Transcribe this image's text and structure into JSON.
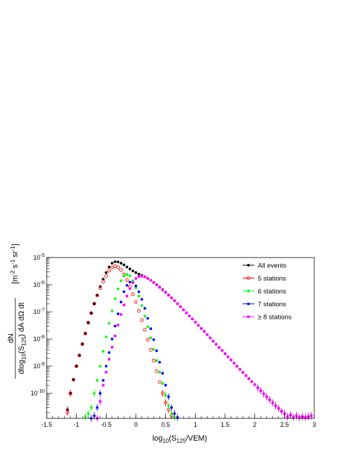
{
  "chart_data": {
    "type": "scatter",
    "title": "",
    "xlabel": {
      "pre": "log",
      "sub1": "10",
      "mid": "(S",
      "sub2": "125",
      "post": "/VEM)"
    },
    "ylabel": {
      "numerator": "dN",
      "denominator": {
        "pre": "dlog",
        "sub1": "10",
        "mid": "(S",
        "sub2": "125",
        "post": ") dA dΩ dt"
      },
      "units": {
        "open": "[m",
        "sup1": "-2",
        "s": " s",
        "sup2": "-1",
        "sr": " sr",
        "sup3": "-1",
        "close": "]"
      }
    },
    "x_scale": "linear",
    "y_scale": "log",
    "xlim": [
      -1.5,
      3.0
    ],
    "ylim": [
      1.2e-11,
      1e-05
    ],
    "x_ticks": [
      {
        "value": -1.5,
        "label": "-1.5"
      },
      {
        "value": -1,
        "label": "-1"
      },
      {
        "value": -0.5,
        "label": "-0.5"
      },
      {
        "value": 0,
        "label": "0"
      },
      {
        "value": 0.5,
        "label": "0.5"
      },
      {
        "value": 1,
        "label": "1"
      },
      {
        "value": 1.5,
        "label": "1.5"
      },
      {
        "value": 2,
        "label": "2"
      },
      {
        "value": 2.5,
        "label": "2.5"
      },
      {
        "value": 3,
        "label": "3"
      }
    ],
    "y_ticks": [
      {
        "value": 1e-10,
        "base": "10",
        "exp": "-10"
      },
      {
        "value": 1e-09,
        "base": "10",
        "exp": "-9"
      },
      {
        "value": 1e-08,
        "base": "10",
        "exp": "-8"
      },
      {
        "value": 1e-07,
        "base": "10",
        "exp": "-7"
      },
      {
        "value": 1e-06,
        "base": "10",
        "exp": "-6"
      },
      {
        "value": 1e-05,
        "base": "10",
        "exp": "-5"
      }
    ],
    "grid": false,
    "legend_position": "top-right",
    "series": [
      {
        "name": "All events",
        "color": "#000000",
        "marker": "filled-circle",
        "x": [
          -1.15,
          -1.1,
          -1.05,
          -1.0,
          -0.95,
          -0.9,
          -0.85,
          -0.8,
          -0.75,
          -0.7,
          -0.65,
          -0.6,
          -0.55,
          -0.5,
          -0.45,
          -0.4,
          -0.35,
          -0.3,
          -0.25,
          -0.2,
          -0.15,
          -0.1,
          -0.05,
          0.0,
          0.05,
          0.1,
          0.15,
          0.2,
          0.25,
          0.3,
          0.35,
          0.4,
          0.45,
          0.5,
          0.55,
          0.6,
          0.65,
          0.7,
          0.75,
          0.8,
          0.85,
          0.9,
          0.95,
          1.0,
          1.05,
          1.1,
          1.15,
          1.2,
          1.25,
          1.3,
          1.35,
          1.4,
          1.45,
          1.5,
          1.55,
          1.6,
          1.65,
          1.7,
          1.75,
          1.8,
          1.85,
          1.9,
          1.95,
          2.0,
          2.05,
          2.1,
          2.15,
          2.2,
          2.25,
          2.3,
          2.35,
          2.4,
          2.45,
          2.5,
          2.55,
          2.6,
          2.65,
          2.7,
          2.75,
          2.8,
          2.85,
          2.9,
          2.95
        ],
        "y": [
          2.5e-11,
          1e-10,
          3.2e-10,
          1e-09,
          2.5e-09,
          6.5e-09,
          1.6e-08,
          4e-08,
          9e-08,
          2e-07,
          4.2e-07,
          8.5e-07,
          1.6e-06,
          2.8e-06,
          4.5e-06,
          6.2e-06,
          7e-06,
          6.9e-06,
          6.2e-06,
          5.4e-06,
          4.5e-06,
          3.8e-06,
          3.2e-06,
          2.8e-06,
          2.45e-06,
          2.2e-06,
          1.95e-06,
          1.7e-06,
          1.45e-06,
          1.22e-06,
          1e-06,
          8.2e-07,
          6.6e-07,
          5.3e-07,
          4.2e-07,
          3.3e-07,
          2.6e-07,
          2e-07,
          1.55e-07,
          1.2e-07,
          9.2e-08,
          7.1e-08,
          5.5e-08,
          4.2e-08,
          3.2e-08,
          2.45e-08,
          1.9e-08,
          1.45e-08,
          1.1e-08,
          8.4e-09,
          6.4e-09,
          4.9e-09,
          3.8e-09,
          2.9e-09,
          2.2e-09,
          1.7e-09,
          1.3e-09,
          1e-09,
          7.7e-10,
          5.9e-10,
          4.5e-10,
          3.5e-10,
          2.7e-10,
          2.1e-10,
          1.6e-10,
          1.25e-10,
          9.6e-11,
          7.5e-11,
          5.8e-11,
          4.5e-11,
          3.5e-11,
          2.8e-11,
          2.2e-11,
          1.8e-11,
          1.4e-11,
          1.6e-11,
          1.3e-11,
          1.5e-11,
          1.3e-11,
          1.4e-11,
          1.3e-11,
          1.4e-11,
          1.5e-11
        ]
      },
      {
        "name": "5 stations",
        "color": "#ff0000",
        "marker": "open-circle",
        "x": [
          -1.15,
          -1.1,
          -1.05,
          -1.0,
          -0.95,
          -0.9,
          -0.85,
          -0.8,
          -0.75,
          -0.7,
          -0.65,
          -0.6,
          -0.55,
          -0.5,
          -0.45,
          -0.4,
          -0.35,
          -0.3,
          -0.25,
          -0.2,
          -0.15,
          -0.1,
          -0.05,
          0.0,
          0.05,
          0.1,
          0.15,
          0.2,
          0.25,
          0.3,
          0.35,
          0.4,
          0.45,
          0.5,
          0.55,
          0.6
        ],
        "y": [
          2e-11,
          1e-10,
          3.2e-10,
          1e-09,
          2.5e-09,
          6.5e-09,
          1.6e-08,
          4e-08,
          9e-08,
          2e-07,
          4e-07,
          7.5e-07,
          1.3e-06,
          2.1e-06,
          3.3e-06,
          4.3e-06,
          4.8e-06,
          4.4e-06,
          3.5e-06,
          2.4e-06,
          1.5e-06,
          8.5e-07,
          4.5e-07,
          2.3e-07,
          1.1e-07,
          5e-08,
          2.2e-08,
          9.5e-09,
          4e-09,
          1.6e-09,
          6.5e-10,
          2.6e-10,
          1e-10,
          4.5e-11,
          2.5e-11,
          1.5e-11
        ]
      },
      {
        "name": "6 stations",
        "color": "#00ff00",
        "marker": "filled-circle",
        "x": [
          -0.85,
          -0.8,
          -0.75,
          -0.7,
          -0.65,
          -0.6,
          -0.55,
          -0.5,
          -0.45,
          -0.4,
          -0.35,
          -0.3,
          -0.25,
          -0.2,
          -0.15,
          -0.1,
          -0.05,
          0.0,
          0.05,
          0.1,
          0.15,
          0.2,
          0.25,
          0.3,
          0.35,
          0.4,
          0.45,
          0.5,
          0.55,
          0.6,
          0.65
        ],
        "y": [
          1.4e-11,
          1.8e-11,
          3e-11,
          1e-10,
          3e-10,
          1e-09,
          3.5e-09,
          1.2e-08,
          3.8e-08,
          1.1e-07,
          3e-07,
          7e-07,
          1.4e-06,
          2.1e-06,
          2.4e-06,
          2.1e-06,
          1.4e-06,
          7.8e-07,
          3.8e-07,
          1.7e-07,
          7e-08,
          2.8e-08,
          1.1e-08,
          4.2e-09,
          1.6e-09,
          6e-10,
          2.3e-10,
          8.5e-11,
          3.5e-11,
          1.8e-11,
          1.3e-11
        ]
      },
      {
        "name": "7 stations",
        "color": "#0000ff",
        "marker": "filled-circle",
        "x": [
          -0.75,
          -0.7,
          -0.65,
          -0.6,
          -0.55,
          -0.5,
          -0.45,
          -0.4,
          -0.35,
          -0.3,
          -0.25,
          -0.2,
          -0.15,
          -0.1,
          -0.05,
          0.0,
          0.05,
          0.1,
          0.15,
          0.2,
          0.25,
          0.3,
          0.35,
          0.4,
          0.45,
          0.5,
          0.55,
          0.6,
          0.65,
          0.7
        ],
        "y": [
          1.2e-11,
          1.5e-11,
          3e-11,
          1e-10,
          3e-10,
          1e-09,
          3.2e-09,
          1e-08,
          3e-08,
          8.5e-08,
          2.3e-07,
          5.5e-07,
          9.5e-07,
          1.25e-06,
          1.2e-06,
          9e-07,
          5.5e-07,
          2.9e-07,
          1.35e-07,
          5.8e-08,
          2.4e-08,
          9.5e-09,
          3.7e-09,
          1.4e-09,
          5.5e-10,
          2e-10,
          7.5e-11,
          3e-11,
          1.8e-11,
          1.3e-11
        ]
      },
      {
        "name": "≥ 8 stations",
        "color": "#ff00ff",
        "marker": "filled-square",
        "x": [
          -0.65,
          -0.6,
          -0.55,
          -0.5,
          -0.45,
          -0.4,
          -0.35,
          -0.3,
          -0.25,
          -0.2,
          -0.15,
          -0.1,
          -0.05,
          0.0,
          0.05,
          0.1,
          0.15,
          0.2,
          0.25,
          0.3,
          0.35,
          0.4,
          0.45,
          0.5,
          0.55,
          0.6,
          0.65,
          0.7,
          0.75,
          0.8,
          0.85,
          0.9,
          0.95,
          1.0,
          1.05,
          1.1,
          1.15,
          1.2,
          1.25,
          1.3,
          1.35,
          1.4,
          1.45,
          1.5,
          1.55,
          1.6,
          1.65,
          1.7,
          1.75,
          1.8,
          1.85,
          1.9,
          1.95,
          2.0,
          2.05,
          2.1,
          2.15,
          2.2,
          2.25,
          2.3,
          2.35,
          2.4,
          2.45,
          2.5,
          2.55,
          2.6,
          2.65,
          2.7,
          2.75,
          2.8,
          2.85,
          2.9,
          2.95
        ],
        "y": [
          1.2e-11,
          5e-11,
          2e-10,
          6e-10,
          1.8e-09,
          5e-09,
          1.3e-08,
          3.3e-08,
          8e-08,
          1.8e-07,
          3.8e-07,
          7.2e-07,
          1.2e-06,
          1.7e-06,
          2e-06,
          2.05e-06,
          1.95e-06,
          1.72e-06,
          1.45e-06,
          1.2e-06,
          9.8e-07,
          8e-07,
          6.4e-07,
          5.2e-07,
          4.1e-07,
          3.25e-07,
          2.55e-07,
          2e-07,
          1.55e-07,
          1.2e-07,
          9.2e-08,
          7.1e-08,
          5.5e-08,
          4.2e-08,
          3.2e-08,
          2.45e-08,
          1.9e-08,
          1.45e-08,
          1.1e-08,
          8.4e-09,
          6.4e-09,
          4.9e-09,
          3.8e-09,
          2.9e-09,
          2.2e-09,
          1.7e-09,
          1.3e-09,
          1e-09,
          7.7e-10,
          5.9e-10,
          4.5e-10,
          3.5e-10,
          2.7e-10,
          2.1e-10,
          1.6e-10,
          1.25e-10,
          9.6e-11,
          7.5e-11,
          5.8e-11,
          4.5e-11,
          3.5e-11,
          2.8e-11,
          2.2e-11,
          1.8e-11,
          1.4e-11,
          1.6e-11,
          1.3e-11,
          1.5e-11,
          1.3e-11,
          1.4e-11,
          1.3e-11,
          1.4e-11,
          1.5e-11
        ]
      }
    ]
  }
}
